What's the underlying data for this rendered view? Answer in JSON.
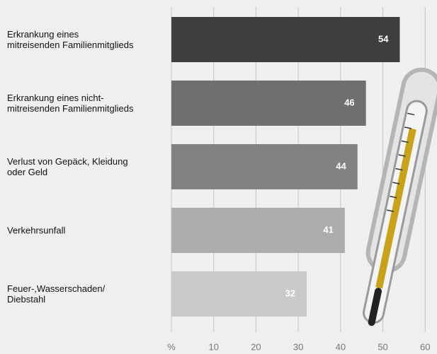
{
  "chart_data": {
    "type": "barh",
    "categories": [
      "Erkrankung eines\nmitreisenden Familienmitglieds",
      "Erkrankung eines nicht-\nmitreisenden Familienmitglieds",
      "Verlust von Gepäck, Kleidung\noder Geld",
      "Verkehrsunfall",
      "Feuer-,Wasserschaden/\nDiebstahl"
    ],
    "values": [
      54,
      46,
      44,
      41,
      32
    ],
    "colors": [
      "#3e3e40",
      "#6f6f71",
      "#828284",
      "#acacae",
      "#c9c9cb"
    ],
    "xlim": [
      0,
      62.8
    ],
    "xticks": [
      {
        "value": 0,
        "label": "%"
      },
      10,
      20,
      30,
      40,
      50,
      60
    ],
    "grid": true
  }
}
